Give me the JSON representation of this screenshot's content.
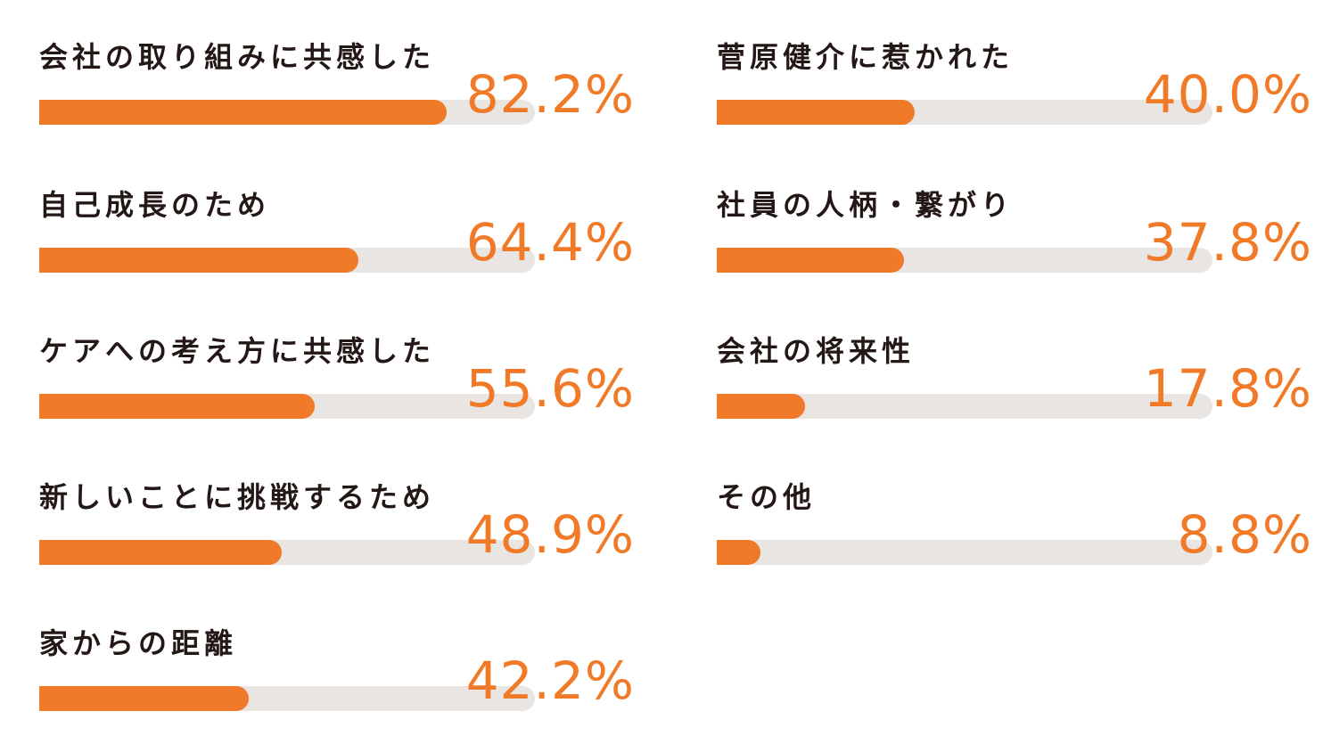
{
  "chart_data": {
    "type": "bar",
    "orientation": "horizontal",
    "xlim": [
      0,
      100
    ],
    "accent_color": "#f07a27",
    "track_color": "#e8e5e3",
    "label_color": "#231815",
    "categories": [
      "会社の取り組みに共感した",
      "自己成長のため",
      "ケアへの考え方に共感した",
      "新しいことに挑戦するため",
      "家からの距離",
      "菅原健介に惹かれた",
      "社員の人柄・繋がり",
      "会社の将来性",
      "その他"
    ],
    "values": [
      82.2,
      64.4,
      55.6,
      48.9,
      42.2,
      40.0,
      37.8,
      17.8,
      8.8
    ],
    "value_labels": [
      "82.2%",
      "64.4%",
      "55.6%",
      "48.9%",
      "42.2%",
      "40.0%",
      "37.8%",
      "17.8%",
      "8.8%"
    ],
    "columns": 2
  }
}
